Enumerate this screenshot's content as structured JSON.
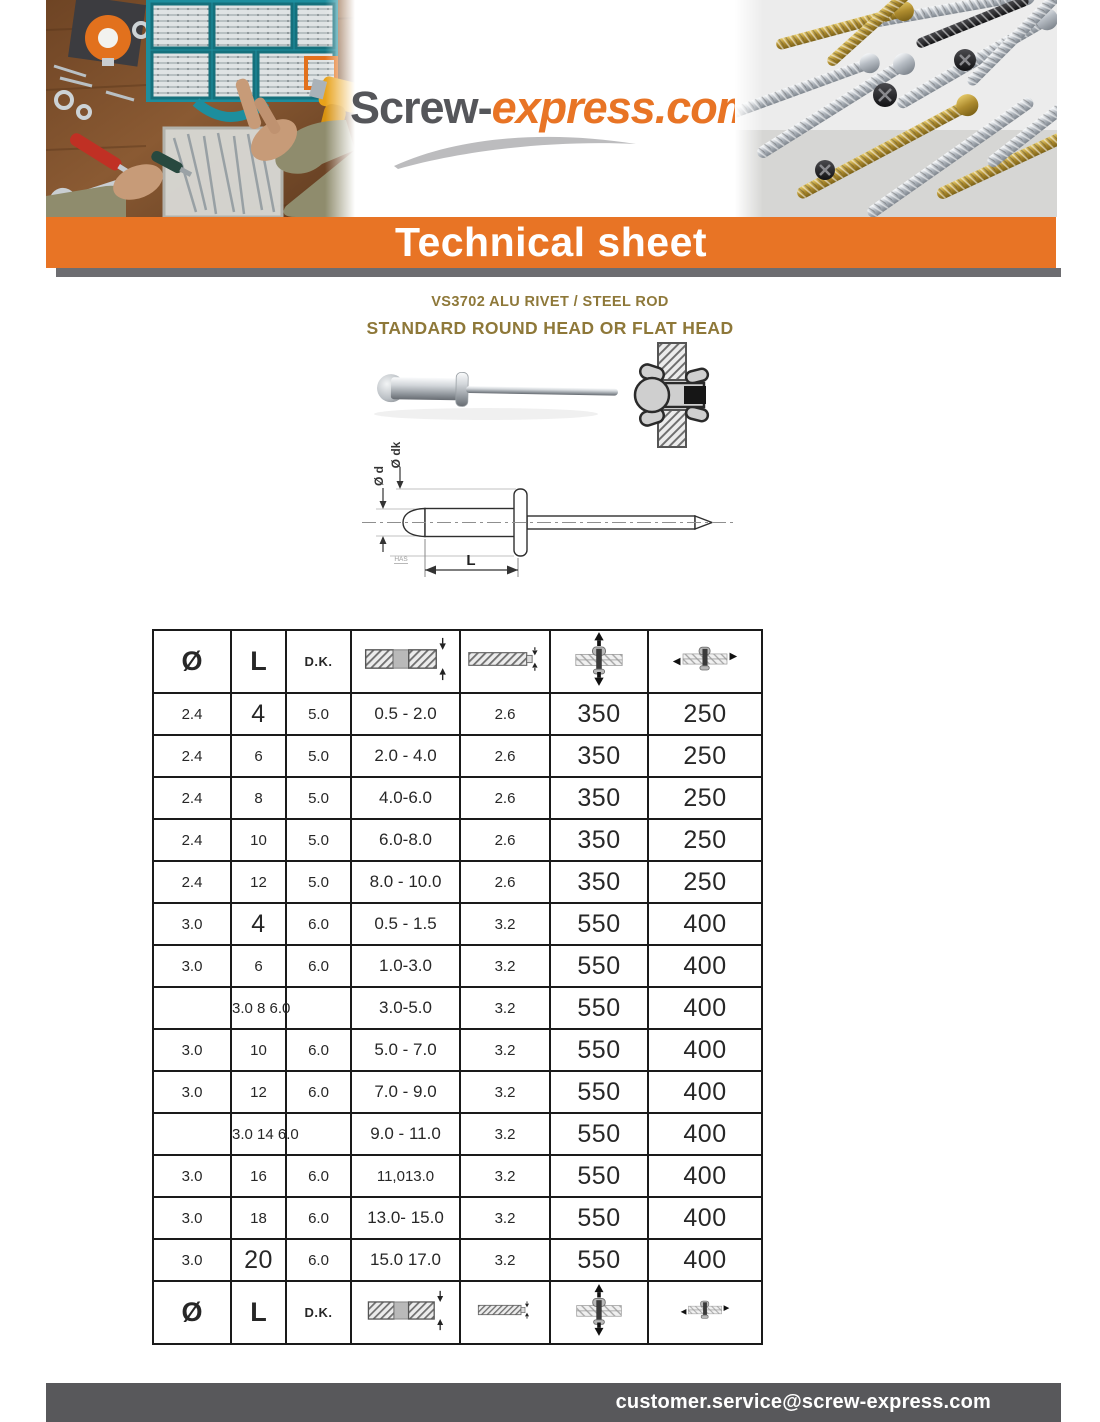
{
  "logo": {
    "part1": "Screw-",
    "part2": "express.com"
  },
  "banner": {
    "title": "Technical sheet"
  },
  "product": {
    "code_line": "VS3702 ALU RIVET / STEEL ROD",
    "head_line": "STANDARD ROUND HEAD OR FLAT HEAD"
  },
  "drawing": {
    "dim_body_diameter": "Ø d",
    "dim_head_diameter": "Ø dk",
    "dim_length": "L",
    "note": "HAS"
  },
  "table": {
    "col_headers": {
      "diameter": "Ø",
      "length": "L",
      "dk": "D.K."
    },
    "icon_names": [
      "grip-range-icon",
      "drill-hole-diameter-icon",
      "tensile-strength-icon",
      "shear-strength-icon"
    ],
    "rows": [
      [
        {
          "t": "2.4",
          "c": "sm"
        },
        {
          "t": "4",
          "c": "lg"
        },
        {
          "t": "5.0",
          "c": "sm"
        },
        {
          "t": "0.5 - 2.0",
          "c": "md"
        },
        {
          "t": "2.6",
          "c": "sm"
        },
        {
          "t": "350",
          "c": "lg"
        },
        {
          "t": "250",
          "c": "lg"
        }
      ],
      [
        {
          "t": "2.4",
          "c": "sm"
        },
        {
          "t": "6",
          "c": "sm rt"
        },
        {
          "t": "5.0",
          "c": "sm lf"
        },
        {
          "t": "2.0 - 4.0",
          "c": "md"
        },
        {
          "t": "2.6",
          "c": "sm"
        },
        {
          "t": "350",
          "c": "lg"
        },
        {
          "t": "250",
          "c": "lg"
        }
      ],
      [
        {
          "t": "2.4",
          "c": "sm"
        },
        {
          "t": "8",
          "c": "sm rt"
        },
        {
          "t": "5.0",
          "c": "sm lf"
        },
        {
          "t": "4.0-6.0",
          "c": "md"
        },
        {
          "t": "2.6",
          "c": "sm"
        },
        {
          "t": "350",
          "c": "lg"
        },
        {
          "t": "250",
          "c": "lg"
        }
      ],
      [
        {
          "t": "2.4",
          "c": "sm"
        },
        {
          "t": "10",
          "c": "sm rt"
        },
        {
          "t": "5.0",
          "c": "sm lf"
        },
        {
          "t": "6.0-8.0",
          "c": "md"
        },
        {
          "t": "2.6",
          "c": "sm"
        },
        {
          "t": "350",
          "c": "lg"
        },
        {
          "t": "250",
          "c": "lg"
        }
      ],
      [
        {
          "t": "2.4",
          "c": "sm"
        },
        {
          "t": "12",
          "c": "sm rt"
        },
        {
          "t": "5.0",
          "c": "sm lf"
        },
        {
          "t": "8.0 - 10.0",
          "c": "md"
        },
        {
          "t": "2.6",
          "c": "sm"
        },
        {
          "t": "350",
          "c": "lg"
        },
        {
          "t": "250",
          "c": "lg"
        }
      ],
      [
        {
          "t": "3.0",
          "c": "sm"
        },
        {
          "t": "4",
          "c": "lg"
        },
        {
          "t": "6.0",
          "c": "sm"
        },
        {
          "t": "0.5 - 1.5",
          "c": "md"
        },
        {
          "t": "3.2",
          "c": "sm"
        },
        {
          "t": "550",
          "c": "lg"
        },
        {
          "t": "400",
          "c": "lg"
        }
      ],
      [
        {
          "t": "3.0",
          "c": "sm rt"
        },
        {
          "t": "6",
          "c": "sm lf"
        },
        {
          "t": "6.0",
          "c": "sm"
        },
        {
          "t": "1.0-3.0",
          "c": "md"
        },
        {
          "t": "3.2",
          "c": "sm"
        },
        {
          "t": "550",
          "c": "lg"
        },
        {
          "t": "400",
          "c": "lg"
        }
      ],
      [
        {
          "t": "",
          "c": "sm"
        },
        {
          "t": "3.0 8 6.0",
          "c": "sm ovf"
        },
        {
          "t": "",
          "c": "sm"
        },
        {
          "t": "3.0-5.0",
          "c": "md"
        },
        {
          "t": "3.2",
          "c": "sm"
        },
        {
          "t": "550",
          "c": "lg"
        },
        {
          "t": "400",
          "c": "lg"
        }
      ],
      [
        {
          "t": "3.0",
          "c": "sm rt"
        },
        {
          "t": "10",
          "c": "sm lf"
        },
        {
          "t": "6.0",
          "c": "sm"
        },
        {
          "t": "5.0 - 7.0",
          "c": "md"
        },
        {
          "t": "3.2",
          "c": "sm"
        },
        {
          "t": "550",
          "c": "lg"
        },
        {
          "t": "400",
          "c": "lg"
        }
      ],
      [
        {
          "t": "3.0",
          "c": "sm rt"
        },
        {
          "t": "12",
          "c": "sm lf"
        },
        {
          "t": "6.0",
          "c": "sm"
        },
        {
          "t": "7.0 - 9.0",
          "c": "md"
        },
        {
          "t": "3.2",
          "c": "sm"
        },
        {
          "t": "550",
          "c": "lg"
        },
        {
          "t": "400",
          "c": "lg"
        }
      ],
      [
        {
          "t": "",
          "c": "sm"
        },
        {
          "t": "3.0 14 6.0",
          "c": "sm ovf"
        },
        {
          "t": "",
          "c": "sm"
        },
        {
          "t": "9.0 - 11.0",
          "c": "md"
        },
        {
          "t": "3.2",
          "c": "sm"
        },
        {
          "t": "550",
          "c": "lg"
        },
        {
          "t": "400",
          "c": "lg"
        }
      ],
      [
        {
          "t": "3.0",
          "c": "sm rt"
        },
        {
          "t": "16",
          "c": "sm lf"
        },
        {
          "t": "6.0",
          "c": "sm"
        },
        {
          "t": "11,013.0",
          "c": "sm"
        },
        {
          "t": "3.2",
          "c": "sm"
        },
        {
          "t": "550",
          "c": "lg"
        },
        {
          "t": "400",
          "c": "lg"
        }
      ],
      [
        {
          "t": "3.0",
          "c": "sm rt"
        },
        {
          "t": "18",
          "c": "sm lf"
        },
        {
          "t": "6.0",
          "c": "sm"
        },
        {
          "t": "13.0- 15.0",
          "c": "md"
        },
        {
          "t": "3.2",
          "c": "sm"
        },
        {
          "t": "550",
          "c": "lg"
        },
        {
          "t": "400",
          "c": "lg"
        }
      ],
      [
        {
          "t": "3.0",
          "c": "sm"
        },
        {
          "t": "20",
          "c": "lg"
        },
        {
          "t": "6.0",
          "c": "sm"
        },
        {
          "t": "15.0 17.0",
          "c": "md"
        },
        {
          "t": "3.2",
          "c": "sm"
        },
        {
          "t": "550",
          "c": "lg"
        },
        {
          "t": "400",
          "c": "lg"
        }
      ]
    ]
  },
  "footer": {
    "email": "customer.service@screw-express.com"
  },
  "colors": {
    "accent_orange": "#E87425",
    "footer_gray": "#58585B",
    "strip_gray": "#6D6D71",
    "title_gold": "#8E7839"
  }
}
